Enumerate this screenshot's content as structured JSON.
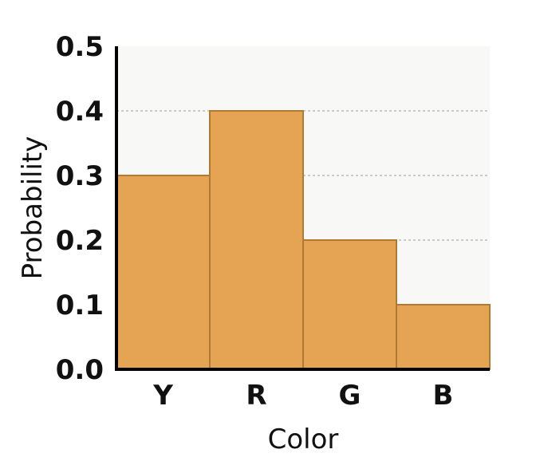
{
  "chart_data": {
    "type": "bar",
    "title": "",
    "xlabel": "Color",
    "ylabel": "Probability",
    "categories": [
      "Y",
      "R",
      "G",
      "B"
    ],
    "values": [
      0.3,
      0.4,
      0.2,
      0.1
    ],
    "ylim": [
      0,
      0.5
    ],
    "yticks": [
      "0.0",
      "0.1",
      "0.2",
      "0.3",
      "0.4",
      "0.5"
    ],
    "grid": true,
    "grid_style": "dotted horizontal",
    "legend": "none",
    "colors": {
      "bar_fill": "#E5A453",
      "bar_edge": "#B07A35",
      "plot_background": "#F8F8F6",
      "grid": "#BBBBBB",
      "axis": "#000000",
      "text": "#111111"
    }
  }
}
